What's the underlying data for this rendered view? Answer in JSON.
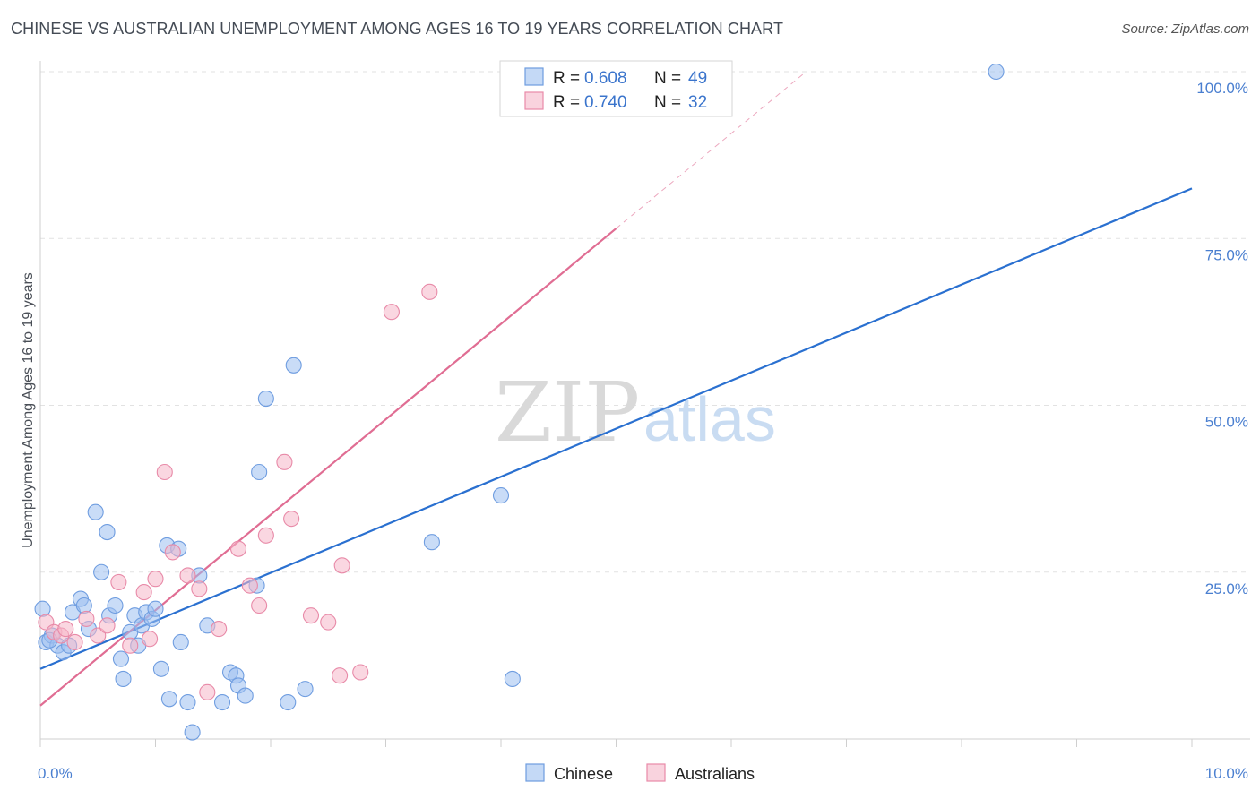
{
  "title": "CHINESE VS AUSTRALIAN UNEMPLOYMENT AMONG AGES 16 TO 19 YEARS CORRELATION CHART",
  "source": "Source: ZipAtlas.com",
  "watermark": {
    "zip": "ZIP",
    "atlas": "atlas"
  },
  "legend": {
    "rows": [
      {
        "r_label": "R =",
        "r_value": "0.608",
        "n_label": "N =",
        "n_value": "49",
        "color": "#9dbff0"
      },
      {
        "r_label": "R =",
        "r_value": "0.740",
        "n_label": "N =",
        "n_value": "32",
        "color": "#f5b6c8"
      }
    ]
  },
  "bottom_legend": [
    "Chinese",
    "Australians"
  ],
  "chart_data": {
    "type": "scatter",
    "title": "CHINESE VS AUSTRALIAN UNEMPLOYMENT AMONG AGES 16 TO 19 YEARS CORRELATION CHART",
    "xlabel": "",
    "ylabel": "Unemployment Among Ages 16 to 19 years",
    "xlim": [
      0,
      10
    ],
    "ylim": [
      0,
      100
    ],
    "x_tick_labels": [
      "0.0%",
      "10.0%"
    ],
    "y_ticks": [
      25,
      50,
      75,
      100
    ],
    "y_tick_labels": [
      "25.0%",
      "50.0%",
      "75.0%",
      "100.0%"
    ],
    "grid": true,
    "series": [
      {
        "name": "Chinese",
        "color": "#9dbff0",
        "stroke": "#6f9de0",
        "line_color": "#2a70d0",
        "trend": {
          "x0": 0,
          "y0": 10.5,
          "x1": 10,
          "y1": 82.5
        },
        "points": [
          [
            0.02,
            19.5
          ],
          [
            0.05,
            14.5
          ],
          [
            0.1,
            15.5
          ],
          [
            0.15,
            14
          ],
          [
            0.2,
            13
          ],
          [
            0.25,
            14
          ],
          [
            0.28,
            19
          ],
          [
            0.35,
            21
          ],
          [
            0.38,
            20
          ],
          [
            0.42,
            16.5
          ],
          [
            0.48,
            34
          ],
          [
            0.53,
            25
          ],
          [
            0.58,
            31
          ],
          [
            0.6,
            18.5
          ],
          [
            0.65,
            20
          ],
          [
            0.7,
            12
          ],
          [
            0.72,
            9
          ],
          [
            0.78,
            16
          ],
          [
            0.82,
            18.5
          ],
          [
            0.85,
            14
          ],
          [
            0.88,
            17
          ],
          [
            0.92,
            19
          ],
          [
            0.97,
            18
          ],
          [
            1.0,
            19.5
          ],
          [
            1.05,
            10.5
          ],
          [
            1.1,
            29
          ],
          [
            1.12,
            6
          ],
          [
            1.2,
            28.5
          ],
          [
            1.22,
            14.5
          ],
          [
            1.28,
            5.5
          ],
          [
            1.32,
            1
          ],
          [
            1.38,
            24.5
          ],
          [
            1.45,
            17
          ],
          [
            1.58,
            5.5
          ],
          [
            1.65,
            10
          ],
          [
            1.7,
            9.5
          ],
          [
            1.72,
            8
          ],
          [
            1.78,
            6.5
          ],
          [
            1.88,
            23
          ],
          [
            1.9,
            40
          ],
          [
            1.96,
            51
          ],
          [
            2.15,
            5.5
          ],
          [
            2.2,
            56
          ],
          [
            2.3,
            7.5
          ],
          [
            3.4,
            29.5
          ],
          [
            4.0,
            36.5
          ],
          [
            4.1,
            9
          ],
          [
            8.3,
            100
          ],
          [
            0.08,
            14.8
          ]
        ]
      },
      {
        "name": "Australians",
        "color": "#f5b6c8",
        "stroke": "#e88aa8",
        "line_color": "#e06d93",
        "trend": {
          "x0": 0,
          "y0": 5,
          "x1": 5.0,
          "y1": 76.5
        },
        "trend_ext": {
          "x0": 5.0,
          "y0": 76.5,
          "x1": 6.65,
          "y1": 100
        },
        "points": [
          [
            0.05,
            17.5
          ],
          [
            0.12,
            16
          ],
          [
            0.18,
            15.5
          ],
          [
            0.22,
            16.5
          ],
          [
            0.4,
            18
          ],
          [
            0.5,
            15.5
          ],
          [
            0.58,
            17
          ],
          [
            0.68,
            23.5
          ],
          [
            0.78,
            14
          ],
          [
            0.9,
            22
          ],
          [
            0.95,
            15
          ],
          [
            1.0,
            24
          ],
          [
            1.08,
            40
          ],
          [
            1.15,
            28
          ],
          [
            1.28,
            24.5
          ],
          [
            1.38,
            22.5
          ],
          [
            1.45,
            7
          ],
          [
            1.55,
            16.5
          ],
          [
            1.72,
            28.5
          ],
          [
            1.82,
            23
          ],
          [
            1.9,
            20
          ],
          [
            1.96,
            30.5
          ],
          [
            2.12,
            41.5
          ],
          [
            2.18,
            33
          ],
          [
            2.35,
            18.5
          ],
          [
            2.5,
            17.5
          ],
          [
            2.6,
            9.5
          ],
          [
            2.62,
            26
          ],
          [
            2.78,
            10
          ],
          [
            3.05,
            64
          ],
          [
            3.38,
            67
          ],
          [
            0.3,
            14.5
          ]
        ]
      }
    ]
  }
}
